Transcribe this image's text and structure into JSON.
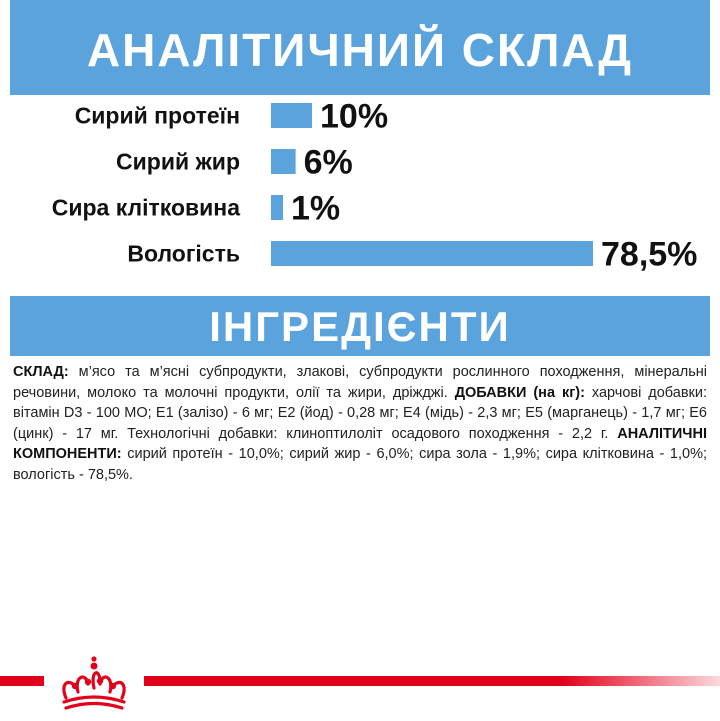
{
  "header": {
    "title": "АНАЛІТИЧНИЙ СКЛАД"
  },
  "chart_data": {
    "type": "bar",
    "orientation": "horizontal",
    "title": "АНАЛІТИЧНИЙ СКЛАД",
    "categories": [
      "Сирий протеїн",
      "Сирий жир",
      "Сира клітковина",
      "Вологість"
    ],
    "values": [
      10,
      6,
      1,
      78.5
    ],
    "value_labels": [
      "10%",
      "6%",
      "1%",
      "78,5%"
    ],
    "xlim": [
      0,
      78.5
    ],
    "bar_color": "#5aa3dc",
    "grid": false,
    "legend": "none"
  },
  "ingredients_section": {
    "title": "ІНГРЕДІЄНТИ",
    "composition_label": "СКЛАД:",
    "composition_text": " м’ясо та м’ясні субпродукти, злакові, субпродукти рослинного походження, мінеральні речовини, молоко та молочні продукти, олії та жири, дріжджі. ",
    "additives_label": "ДОБАВКИ (на кг):",
    "additives_text": " харчові добавки: вітамін D3 - 100 МО; Е1 (залізо) - 6 мг; Е2 (йод) - 0,28 мг; Е4 (мідь) - 2,3 мг; Е5 (марганець) - 1,7 мг; Е6 (цинк) - 17 мг. Технологічні добавки: клиноптилоліт осадового походження - 2,2 г. ",
    "components_label": "АНАЛІТИЧНІ КОМПОНЕНТИ:",
    "components_text": " сирий протеїн - 10,0%; сирий жир - 6,0%; сира зола - 1,9%; сира клітковина - 1,0%; вологість - 78,5%."
  },
  "footer": {
    "brand_color": "#e2001a",
    "logo_icon": "royal-crown-icon"
  }
}
